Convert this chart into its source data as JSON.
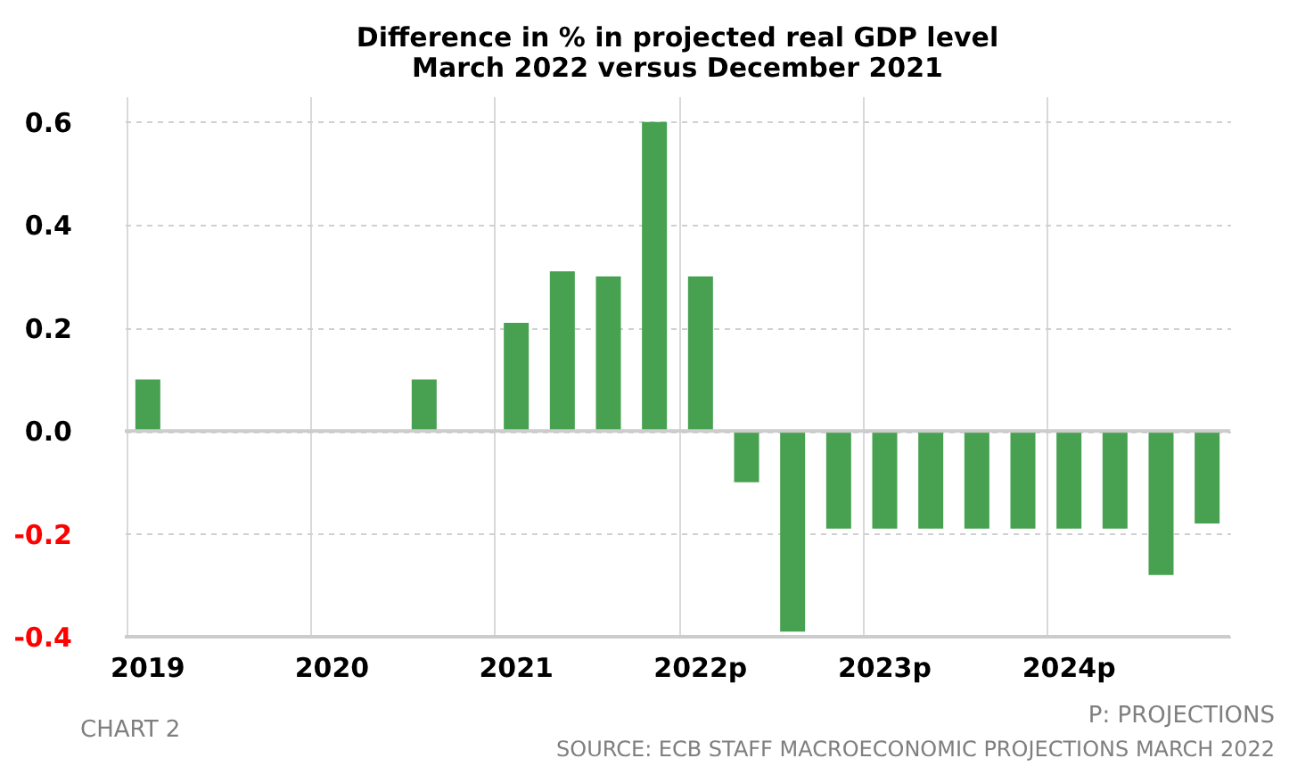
{
  "chart_data": {
    "type": "bar",
    "title": [
      "Difference in % in projected real GDP level",
      "March 2022 versus December 2021"
    ],
    "categories": [
      "2019",
      null,
      null,
      null,
      "2020",
      null,
      null,
      null,
      "2021",
      null,
      null,
      null,
      "2022p",
      null,
      null,
      null,
      "2023p",
      null,
      null,
      null,
      "2024p",
      null,
      null,
      null
    ],
    "values": [
      0.1,
      null,
      null,
      null,
      null,
      null,
      0.1,
      null,
      0.21,
      0.31,
      0.3,
      0.6,
      0.3,
      -0.1,
      -0.39,
      -0.19,
      -0.19,
      -0.19,
      -0.19,
      -0.19,
      -0.19,
      -0.19,
      -0.28,
      -0.18
    ],
    "color": "#47a151",
    "ylim": [
      -0.4,
      0.65
    ],
    "yticks": [
      {
        "value": -0.4,
        "label": "-0.4"
      },
      {
        "value": -0.2,
        "label": "-0.2"
      },
      {
        "value": 0,
        "label": "0.0"
      },
      {
        "value": 0.2,
        "label": "0.2"
      },
      {
        "value": 0.4,
        "label": "0.4"
      },
      {
        "value": 0.6,
        "label": "0.6"
      }
    ],
    "grid": true,
    "annotations": [
      "CHART 2",
      "P: PROJECTIONS",
      "SOURCE: ECB STAFF MACROECONOMIC PROJECTIONS MARCH 2022"
    ]
  }
}
